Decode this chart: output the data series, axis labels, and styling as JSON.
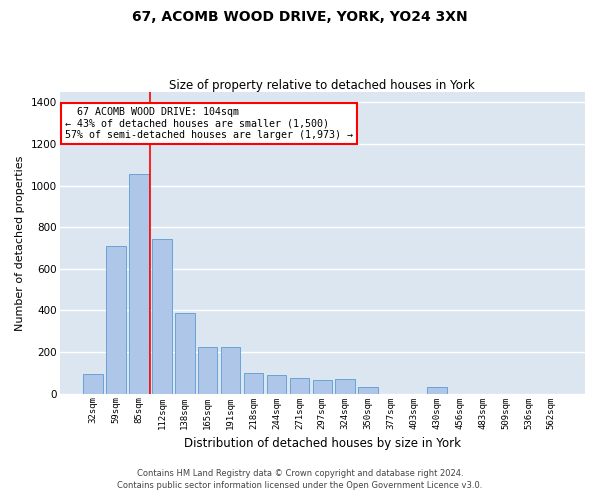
{
  "title_line1": "67, ACOMB WOOD DRIVE, YORK, YO24 3XN",
  "title_line2": "Size of property relative to detached houses in York",
  "xlabel": "Distribution of detached houses by size in York",
  "ylabel": "Number of detached properties",
  "categories": [
    "32sqm",
    "59sqm",
    "85sqm",
    "112sqm",
    "138sqm",
    "165sqm",
    "191sqm",
    "218sqm",
    "244sqm",
    "271sqm",
    "297sqm",
    "324sqm",
    "350sqm",
    "377sqm",
    "403sqm",
    "430sqm",
    "456sqm",
    "483sqm",
    "509sqm",
    "536sqm",
    "562sqm"
  ],
  "values": [
    95,
    710,
    1055,
    745,
    390,
    225,
    225,
    100,
    90,
    75,
    65,
    70,
    30,
    0,
    0,
    30,
    0,
    0,
    0,
    0,
    0
  ],
  "bar_color": "#aec6e8",
  "bar_edge_color": "#5b9bd5",
  "background_color": "#dce6f1",
  "grid_color": "#ffffff",
  "property_line_color": "red",
  "annotation_text": "  67 ACOMB WOOD DRIVE: 104sqm\n← 43% of detached houses are smaller (1,500)\n57% of semi-detached houses are larger (1,973) →",
  "annotation_box_color": "red",
  "ylim": [
    0,
    1450
  ],
  "yticks": [
    0,
    200,
    400,
    600,
    800,
    1000,
    1200,
    1400
  ],
  "footnote1": "Contains HM Land Registry data © Crown copyright and database right 2024.",
  "footnote2": "Contains public sector information licensed under the Open Government Licence v3.0."
}
